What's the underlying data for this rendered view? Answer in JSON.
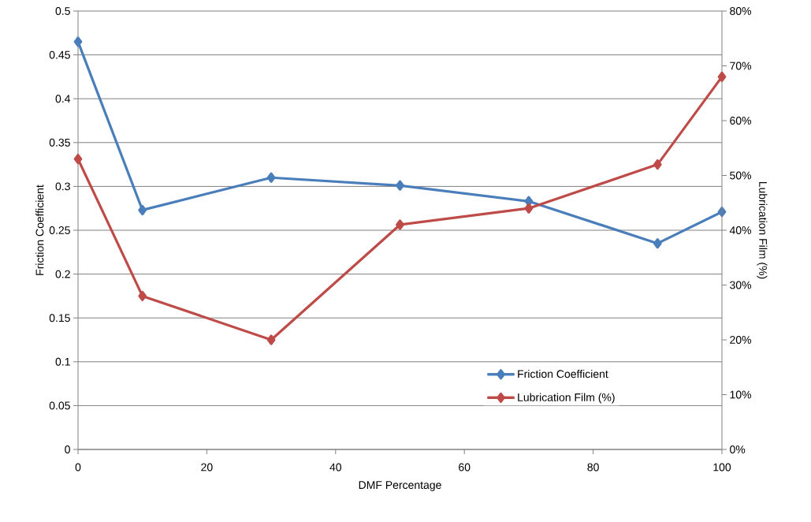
{
  "chart_data": {
    "type": "line",
    "xlabel": "DMF Percentage",
    "ylabel": "Friction Coefficient",
    "y2label": "Lubrication Film (%)",
    "x": [
      0,
      10,
      30,
      50,
      70,
      90,
      100
    ],
    "series": [
      {
        "name": "Friction Coefficient",
        "color": "#4a7ebb",
        "values": [
          0.465,
          0.273,
          0.31,
          0.301,
          0.283,
          0.235,
          0.271
        ]
      },
      {
        "name": "Lubrication Film (%)",
        "color": "#be4b48",
        "axis": "y2",
        "values": [
          53,
          28,
          20,
          41,
          44,
          52,
          68
        ]
      }
    ],
    "xlim": [
      0,
      100
    ],
    "xticks": [
      0,
      20,
      40,
      60,
      80,
      100
    ],
    "ylim": [
      0,
      0.5
    ],
    "yticks": [
      0,
      0.05,
      0.1,
      0.15,
      0.2,
      0.25,
      0.3,
      0.35,
      0.4,
      0.45,
      0.5
    ],
    "y2lim": [
      0,
      80
    ],
    "y2ticks": [
      {
        "value": 0,
        "label": "0%"
      },
      {
        "value": 10,
        "label": "10%"
      },
      {
        "value": 20,
        "label": "20%"
      },
      {
        "value": 30,
        "label": "30%"
      },
      {
        "value": 40,
        "label": "40%"
      },
      {
        "value": 50,
        "label": "50%"
      },
      {
        "value": 60,
        "label": "60%"
      },
      {
        "value": 70,
        "label": "70%"
      },
      {
        "value": 80,
        "label": "80%"
      }
    ],
    "grid": "y",
    "legend": "bottom right",
    "marker": "diamond",
    "line_style": "solid"
  }
}
